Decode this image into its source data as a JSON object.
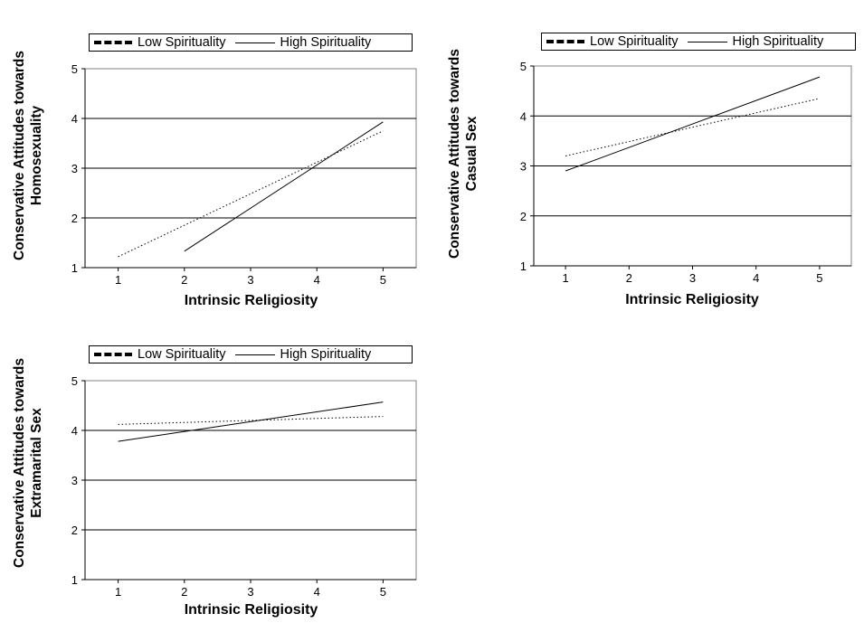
{
  "chart_data": [
    {
      "type": "line",
      "legend": [
        "Low Spirituality",
        "High Spirituality"
      ],
      "ylabel_lines": [
        "Conservative Attitudes towards",
        "Homosexuality"
      ],
      "xlabel": "Intrinsic Religiosity",
      "xticks": [
        "1",
        "2",
        "3",
        "4",
        "5"
      ],
      "yticks": [
        "1",
        "2",
        "3",
        "4",
        "5"
      ],
      "xlim": [
        1,
        5
      ],
      "ylim": [
        1,
        5
      ],
      "grid": "horizontal",
      "legend_position": "top",
      "series": [
        {
          "name": "Low Spirituality",
          "style": "dotted",
          "x": [
            1,
            5
          ],
          "y": [
            1.22,
            3.75
          ]
        },
        {
          "name": "High Spirituality",
          "style": "solid",
          "x": [
            2,
            5
          ],
          "y": [
            1.33,
            3.93
          ]
        }
      ]
    },
    {
      "type": "line",
      "legend": [
        "Low Spirituality",
        "High Spirituality"
      ],
      "ylabel_lines": [
        "Conservative Attitudes towards",
        "Casual Sex"
      ],
      "xlabel": "Intrinsic Religiosity",
      "xticks": [
        "1",
        "2",
        "3",
        "4",
        "5"
      ],
      "yticks": [
        "1",
        "2",
        "3",
        "4",
        "5"
      ],
      "xlim": [
        1,
        5
      ],
      "ylim": [
        1,
        5
      ],
      "grid": "horizontal",
      "legend_position": "top",
      "series": [
        {
          "name": "Low Spirituality",
          "style": "dotted",
          "x": [
            1,
            5
          ],
          "y": [
            3.2,
            4.35
          ]
        },
        {
          "name": "High Spirituality",
          "style": "solid",
          "x": [
            1,
            5
          ],
          "y": [
            2.9,
            4.78
          ]
        }
      ]
    },
    {
      "type": "line",
      "legend": [
        "Low Spirituality",
        "High Spirituality"
      ],
      "ylabel_lines": [
        "Conservative Attitudes towards",
        "Extramarital Sex"
      ],
      "xlabel": "Intrinsic Religiosity",
      "xticks": [
        "1",
        "2",
        "3",
        "4",
        "5"
      ],
      "yticks": [
        "1",
        "2",
        "3",
        "4",
        "5"
      ],
      "xlim": [
        1,
        5
      ],
      "ylim": [
        1,
        5
      ],
      "grid": "horizontal",
      "legend_position": "top",
      "series": [
        {
          "name": "Low Spirituality",
          "style": "dotted",
          "x": [
            1,
            5
          ],
          "y": [
            4.12,
            4.28
          ]
        },
        {
          "name": "High Spirituality",
          "style": "solid",
          "x": [
            1,
            5
          ],
          "y": [
            3.78,
            4.57
          ]
        }
      ]
    }
  ]
}
